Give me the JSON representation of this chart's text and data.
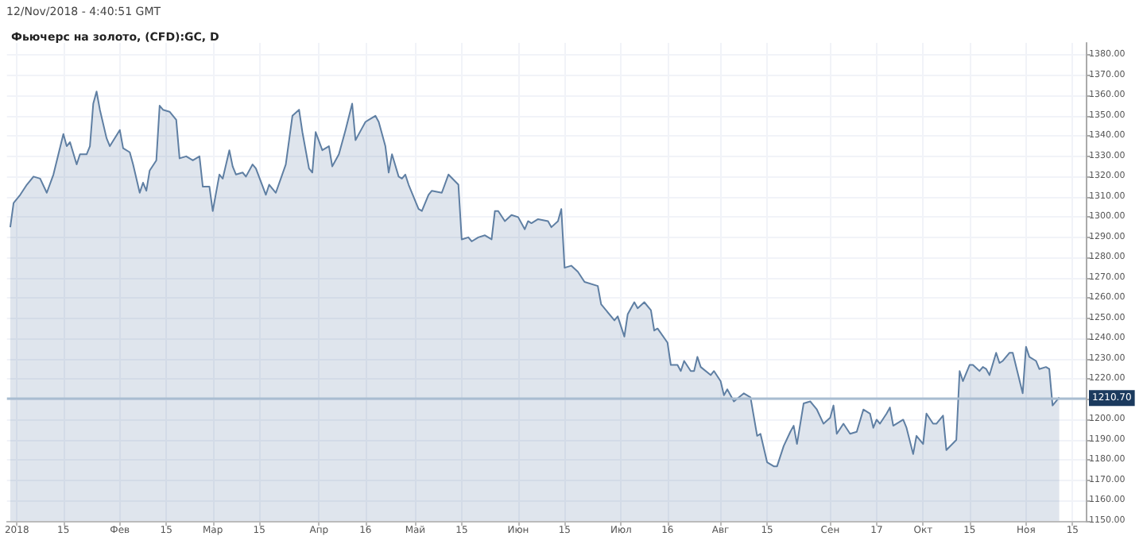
{
  "chart_data": {
    "type": "area",
    "title": "Фьючерс на золото, (CFD):GC, D",
    "annotations": [
      "12/Nov/2018 - 4:40:51 GMT"
    ],
    "x": [
      "2017-12-30",
      "2017-12-31",
      "2018-01-02",
      "2018-01-04",
      "2018-01-06",
      "2018-01-08",
      "2018-01-10",
      "2018-01-12",
      "2018-01-15",
      "2018-01-16",
      "2018-01-17",
      "2018-01-19",
      "2018-01-20",
      "2018-01-22",
      "2018-01-23",
      "2018-01-24",
      "2018-01-25",
      "2018-01-26",
      "2018-01-28",
      "2018-01-29",
      "2018-02-01",
      "2018-02-02",
      "2018-02-04",
      "2018-02-05",
      "2018-02-07",
      "2018-02-08",
      "2018-02-09",
      "2018-02-10",
      "2018-02-12",
      "2018-02-13",
      "2018-02-14",
      "2018-02-16",
      "2018-02-18",
      "2018-02-19",
      "2018-02-21",
      "2018-02-23",
      "2018-02-25",
      "2018-02-26",
      "2018-02-28",
      "2018-03-01",
      "2018-03-03",
      "2018-03-04",
      "2018-03-06",
      "2018-03-07",
      "2018-03-08",
      "2018-03-10",
      "2018-03-11",
      "2018-03-13",
      "2018-03-14",
      "2018-03-17",
      "2018-03-18",
      "2018-03-20",
      "2018-03-23",
      "2018-03-25",
      "2018-03-27",
      "2018-03-28",
      "2018-03-30",
      "2018-03-31",
      "2018-04-01",
      "2018-04-03",
      "2018-04-05",
      "2018-04-06",
      "2018-04-08",
      "2018-04-10",
      "2018-04-12",
      "2018-04-13",
      "2018-04-15",
      "2018-04-16",
      "2018-04-17",
      "2018-04-19",
      "2018-04-20",
      "2018-04-22",
      "2018-04-23",
      "2018-04-24",
      "2018-04-26",
      "2018-04-27",
      "2018-04-28",
      "2018-04-29",
      "2018-05-02",
      "2018-05-03",
      "2018-05-05",
      "2018-05-06",
      "2018-05-09",
      "2018-05-11",
      "2018-05-14",
      "2018-05-15",
      "2018-05-17",
      "2018-05-18",
      "2018-05-20",
      "2018-05-22",
      "2018-05-24",
      "2018-05-25",
      "2018-05-26",
      "2018-05-28",
      "2018-05-30",
      "2018-06-01",
      "2018-06-03",
      "2018-06-04",
      "2018-06-05",
      "2018-06-07",
      "2018-06-10",
      "2018-06-11",
      "2018-06-13",
      "2018-06-14",
      "2018-06-15",
      "2018-06-17",
      "2018-06-19",
      "2018-06-21",
      "2018-06-25",
      "2018-06-26",
      "2018-06-30",
      "2018-07-01",
      "2018-07-03",
      "2018-07-04",
      "2018-07-06",
      "2018-07-07",
      "2018-07-09",
      "2018-07-11",
      "2018-07-12",
      "2018-07-13",
      "2018-07-16",
      "2018-07-17",
      "2018-07-19",
      "2018-07-20",
      "2018-07-21",
      "2018-07-23",
      "2018-07-24",
      "2018-07-25",
      "2018-07-26",
      "2018-07-29",
      "2018-07-30",
      "2018-08-01",
      "2018-08-02",
      "2018-08-03",
      "2018-08-05",
      "2018-08-08",
      "2018-08-10",
      "2018-08-12",
      "2018-08-13",
      "2018-08-15",
      "2018-08-17",
      "2018-08-18",
      "2018-08-20",
      "2018-08-22",
      "2018-08-23",
      "2018-08-24",
      "2018-08-26",
      "2018-08-28",
      "2018-08-30",
      "2018-09-01",
      "2018-09-03",
      "2018-09-04",
      "2018-09-05",
      "2018-09-07",
      "2018-09-09",
      "2018-09-11",
      "2018-09-13",
      "2018-09-15",
      "2018-09-16",
      "2018-09-17",
      "2018-09-18",
      "2018-09-20",
      "2018-09-21",
      "2018-09-22",
      "2018-09-25",
      "2018-09-26",
      "2018-09-28",
      "2018-09-29",
      "2018-10-01",
      "2018-10-02",
      "2018-10-04",
      "2018-10-05",
      "2018-10-07",
      "2018-10-08",
      "2018-10-11",
      "2018-10-12",
      "2018-10-13",
      "2018-10-15",
      "2018-10-16",
      "2018-10-18",
      "2018-10-19",
      "2018-10-20",
      "2018-10-21",
      "2018-10-23",
      "2018-10-24",
      "2018-10-25",
      "2018-10-27",
      "2018-10-28",
      "2018-10-31",
      "2018-11-01",
      "2018-11-02",
      "2018-11-04",
      "2018-11-05",
      "2018-11-07",
      "2018-11-08",
      "2018-11-09",
      "2018-11-11"
    ],
    "series": [
      {
        "color": "#5f7fa3",
        "values": [
          1295,
          1307,
          1311,
          1316,
          1320,
          1319,
          1312,
          1321,
          1341,
          1335,
          1337,
          1326,
          1331,
          1331,
          1335,
          1356,
          1362,
          1353,
          1339,
          1335,
          1343,
          1334,
          1332,
          1326,
          1312,
          1317,
          1313,
          1323,
          1328,
          1355,
          1353,
          1352,
          1348,
          1329,
          1330,
          1328,
          1330,
          1315,
          1315,
          1303,
          1321,
          1319,
          1333,
          1325,
          1321,
          1322,
          1320,
          1326,
          1324,
          1311,
          1316,
          1312,
          1326,
          1350,
          1353,
          1342,
          1324,
          1322,
          1342,
          1333,
          1335,
          1325,
          1331,
          1343,
          1356,
          1338,
          1344,
          1347,
          1348,
          1350,
          1347,
          1335,
          1322,
          1331,
          1320,
          1319,
          1321,
          1316,
          1304,
          1303,
          1311,
          1313,
          1312,
          1321,
          1316,
          1289,
          1290,
          1288,
          1290,
          1291,
          1289,
          1303,
          1303,
          1298,
          1301,
          1300,
          1294,
          1298,
          1297,
          1299,
          1298,
          1295,
          1298,
          1304,
          1275,
          1276,
          1273,
          1268,
          1266,
          1257,
          1249,
          1251,
          1241,
          1252,
          1258,
          1255,
          1258,
          1254,
          1244,
          1245,
          1238,
          1227,
          1227,
          1224,
          1229,
          1224,
          1224,
          1231,
          1226,
          1222,
          1224,
          1219,
          1212,
          1215,
          1209,
          1213,
          1211,
          1192,
          1193,
          1179,
          1177,
          1177,
          1187,
          1194,
          1197,
          1188,
          1208,
          1209,
          1205,
          1198,
          1201,
          1207,
          1193,
          1198,
          1193,
          1194,
          1205,
          1203,
          1196,
          1200,
          1198,
          1203,
          1206,
          1197,
          1200,
          1196,
          1183,
          1192,
          1188,
          1203,
          1198,
          1198,
          1202,
          1185,
          1190,
          1224,
          1219,
          1227,
          1227,
          1224,
          1226,
          1225,
          1222,
          1233,
          1228,
          1229,
          1233,
          1233,
          1213,
          1236,
          1231,
          1229,
          1225,
          1226,
          1225,
          1207,
          1211
        ]
      }
    ],
    "xlim": [
      "2017-12-29",
      "2018-11-19"
    ],
    "xticks": [
      {
        "value": "2018-01-01",
        "label": "2018"
      },
      {
        "value": "2018-01-15",
        "label": "15"
      },
      {
        "value": "2018-02-01",
        "label": "Фев"
      },
      {
        "value": "2018-02-15",
        "label": "15"
      },
      {
        "value": "2018-03-01",
        "label": "Мар"
      },
      {
        "value": "2018-03-15",
        "label": "15"
      },
      {
        "value": "2018-04-02",
        "label": "Апр"
      },
      {
        "value": "2018-04-16",
        "label": "16"
      },
      {
        "value": "2018-05-01",
        "label": "Май"
      },
      {
        "value": "2018-05-15",
        "label": "15"
      },
      {
        "value": "2018-06-01",
        "label": "Июн"
      },
      {
        "value": "2018-06-15",
        "label": "15"
      },
      {
        "value": "2018-07-02",
        "label": "Июл"
      },
      {
        "value": "2018-07-16",
        "label": "16"
      },
      {
        "value": "2018-08-01",
        "label": "Авг"
      },
      {
        "value": "2018-08-15",
        "label": "15"
      },
      {
        "value": "2018-09-03",
        "label": "Сен"
      },
      {
        "value": "2018-09-17",
        "label": "17"
      },
      {
        "value": "2018-10-01",
        "label": "Окт"
      },
      {
        "value": "2018-10-15",
        "label": "15"
      },
      {
        "value": "2018-11-01",
        "label": "Ноя"
      },
      {
        "value": "2018-11-15",
        "label": "15"
      }
    ],
    "ylim": [
      1150,
      1386
    ],
    "yticks": [
      {
        "value": 1150,
        "label": "1150.00"
      },
      {
        "value": 1160,
        "label": "1160.00"
      },
      {
        "value": 1170,
        "label": "1170.00"
      },
      {
        "value": 1180,
        "label": "1180.00"
      },
      {
        "value": 1190,
        "label": "1190.00"
      },
      {
        "value": 1200,
        "label": "1200.00"
      },
      {
        "value": 1210,
        "label": null
      },
      {
        "value": 1220,
        "label": "1220.00"
      },
      {
        "value": 1230,
        "label": "1230.00"
      },
      {
        "value": 1240,
        "label": "1240.00"
      },
      {
        "value": 1250,
        "label": "1250.00"
      },
      {
        "value": 1260,
        "label": "1260.00"
      },
      {
        "value": 1270,
        "label": "1270.00"
      },
      {
        "value": 1280,
        "label": "1280.00"
      },
      {
        "value": 1290,
        "label": "1290.00"
      },
      {
        "value": 1300,
        "label": "1300.00"
      },
      {
        "value": 1310,
        "label": "1310.00"
      },
      {
        "value": 1320,
        "label": "1320.00"
      },
      {
        "value": 1330,
        "label": "1330.00"
      },
      {
        "value": 1340,
        "label": "1340.00"
      },
      {
        "value": 1350,
        "label": "1350.00"
      },
      {
        "value": 1360,
        "label": "1360.00"
      },
      {
        "value": 1370,
        "label": "1370.00"
      },
      {
        "value": 1380,
        "label": "1380.00"
      }
    ],
    "ref_lines": [
      {
        "axis": "y",
        "value": 1210.7,
        "label": "1210.70",
        "color": "#a9bdd1"
      }
    ],
    "grid": true,
    "marker": "none",
    "line_style": "solid"
  }
}
